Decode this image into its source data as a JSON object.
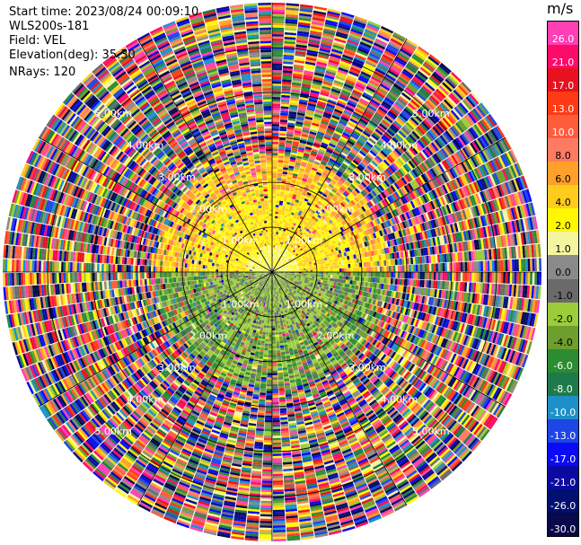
{
  "info": {
    "start_time": "Start time: 2023/08/24 00:09:10",
    "instrument": "WLS200s-181",
    "field": "Field: VEL",
    "elevation": "Elevation(deg): 35.30",
    "nrays": "NRays: 120"
  },
  "colorbar": {
    "units": "m/s",
    "ticks": [
      "26.0",
      "21.0",
      "17.0",
      "13.0",
      "10.0",
      "8.0",
      "6.0",
      "4.0",
      "2.0",
      "1.0",
      "0.0",
      "-1.0",
      "-2.0",
      "-4.0",
      "-6.0",
      "-8.0",
      "-10.0",
      "-13.0",
      "-17.0",
      "-21.0",
      "-26.0",
      "-30.0"
    ],
    "colors": [
      "#ff3fb4",
      "#ff0a6a",
      "#e8121e",
      "#ff3a14",
      "#ff5c3c",
      "#ff7a62",
      "#ffa02a",
      "#ffcc1e",
      "#fff800",
      "#f5f5a0",
      "#8a8a8a",
      "#6a6a6a",
      "#9ccc3a",
      "#6e9e2e",
      "#2c8c32",
      "#1e7a4a",
      "#1e90c8",
      "#1e46e6",
      "#0a0af5",
      "#0a0aa0",
      "#001070",
      "#08084a"
    ]
  },
  "chart_data": {
    "type": "heatmap",
    "projection": "polar",
    "field": "VEL",
    "units": "m/s",
    "nrays": 120,
    "elevation_deg": 35.3,
    "range_rings_km": [
      1.0,
      2.0,
      3.0,
      4.0,
      5.0
    ],
    "ring_labels": [
      "1.00km",
      "2.00km",
      "3.00km",
      "4.00km",
      "5.00km"
    ],
    "max_range_km": 6.0,
    "value_range": [
      -30.0,
      26.0
    ]
  }
}
